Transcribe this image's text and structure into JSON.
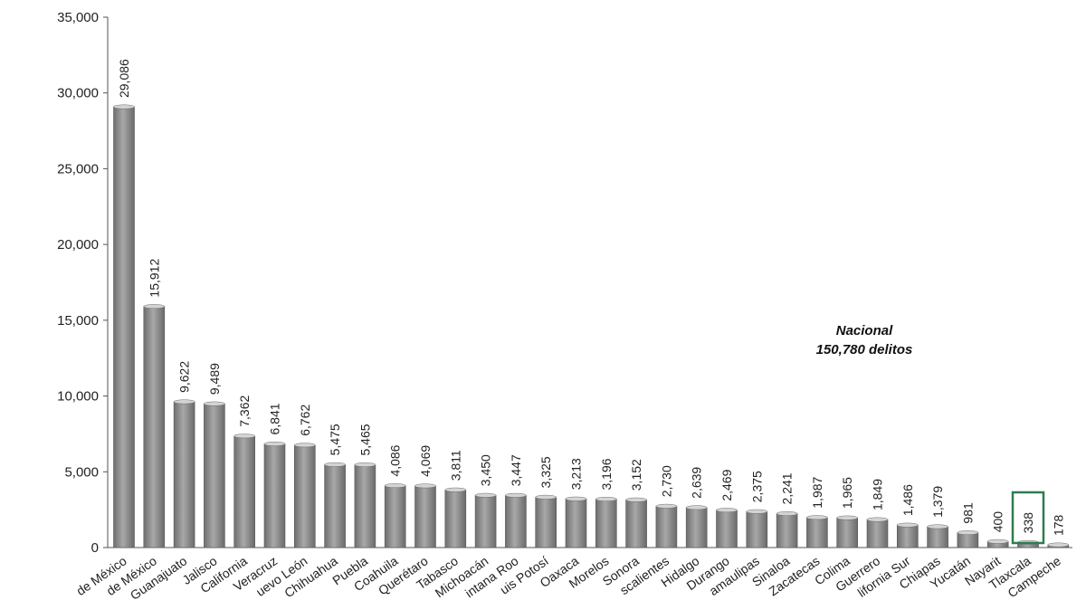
{
  "chart_data": {
    "type": "bar",
    "title": "",
    "xlabel": "",
    "ylabel": "",
    "ylim": [
      0,
      35000
    ],
    "yticks": [
      "0",
      "5,000",
      "10,000",
      "15,000",
      "20,000",
      "25,000",
      "30,000",
      "35,000"
    ],
    "grid": false,
    "categories": [
      "de México",
      "de México",
      "Guanajuato",
      "Jalisco",
      "California",
      "Veracruz",
      "uevo León",
      "Chihuahua",
      "Puebla",
      "Coahuila",
      "Querétaro",
      "Tabasco",
      "Michoacán",
      "intana Roo",
      "uis Potosí",
      "Oaxaca",
      "Morelos",
      "Sonora",
      "scalientes",
      "Hidalgo",
      "Durango",
      "amaulipas",
      "Sinaloa",
      "Zacatecas",
      "Colima",
      "Guerrero",
      "lifornia Sur",
      "Chiapas",
      "Yucatán",
      "Nayarit",
      "Tlaxcala",
      "Campeche"
    ],
    "values": [
      29086,
      15912,
      9622,
      9489,
      7362,
      6841,
      6762,
      5475,
      5465,
      4086,
      4069,
      3811,
      3450,
      3447,
      3325,
      3213,
      3196,
      3152,
      2730,
      2639,
      2469,
      2375,
      2241,
      1987,
      1965,
      1849,
      1486,
      1379,
      981,
      400,
      338,
      178
    ],
    "value_labels": [
      "29,086",
      "15,912",
      "9,622",
      "9,489",
      "7,362",
      "6,841",
      "6,762",
      "5,475",
      "5,465",
      "4,086",
      "4,069",
      "3,811",
      "3,450",
      "3,447",
      "3,325",
      "3,213",
      "3,196",
      "3,152",
      "2,730",
      "2,639",
      "2,469",
      "2,375",
      "2,241",
      "1,987",
      "1,965",
      "1,849",
      "1,486",
      "1,379",
      "981",
      "400",
      "338",
      "178"
    ],
    "bar_color": "#8c8c8c",
    "highlight_index": 30,
    "highlight_color": "#2e7d4f",
    "annotation": [
      "Nacional",
      "150,780 delitos"
    ]
  }
}
